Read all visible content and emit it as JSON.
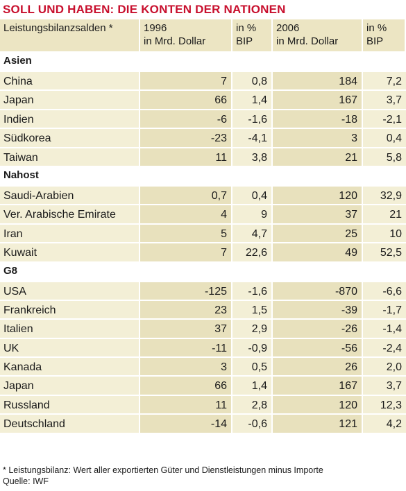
{
  "title": "SOLL UND HABEN: DIE KONTEN DER NATIONEN",
  "columns": [
    {
      "line1": "Leistungsbilanzsalden *",
      "line2": ""
    },
    {
      "line1": "1996",
      "line2": "in Mrd. Dollar"
    },
    {
      "line1": "in %",
      "line2": "BIP"
    },
    {
      "line1": "2006",
      "line2": "in Mrd. Dollar"
    },
    {
      "line1": "in %",
      "line2": "BIP"
    }
  ],
  "groups": [
    {
      "name": "Asien",
      "rows": [
        [
          "China",
          "7",
          "0,8",
          "184",
          "7,2"
        ],
        [
          "Japan",
          "66",
          "1,4",
          "167",
          "3,7"
        ],
        [
          "Indien",
          "-6",
          "-1,6",
          "-18",
          "-2,1"
        ],
        [
          "Südkorea",
          "-23",
          "-4,1",
          "3",
          "0,4"
        ],
        [
          "Taiwan",
          "11",
          "3,8",
          "21",
          "5,8"
        ]
      ]
    },
    {
      "name": "Nahost",
      "rows": [
        [
          "Saudi-Arabien",
          "0,7",
          "0,4",
          "120",
          "32,9"
        ],
        [
          "Ver. Arabische Emirate",
          "4",
          "9",
          "37",
          "21"
        ],
        [
          "Iran",
          "5",
          "4,7",
          "25",
          "10"
        ],
        [
          "Kuwait",
          "7",
          "22,6",
          "49",
          "52,5"
        ]
      ]
    },
    {
      "name": "G8",
      "rows": [
        [
          "USA",
          "-125",
          "-1,6",
          "-870",
          "-6,6"
        ],
        [
          "Frankreich",
          "23",
          "1,5",
          "-39",
          "-1,7"
        ],
        [
          "Italien",
          "37",
          "2,9",
          "-26",
          "-1,4"
        ],
        [
          "UK",
          "-11",
          "-0,9",
          "-56",
          "-2,4"
        ],
        [
          "Kanada",
          "3",
          "0,5",
          "26",
          "2,0"
        ],
        [
          "Japan",
          "66",
          "1,4",
          "167",
          "3,7"
        ],
        [
          "Russland",
          "11",
          "2,8",
          "120",
          "12,3"
        ],
        [
          "Deutschland",
          "-14",
          "-0,6",
          "121",
          "4,2"
        ]
      ]
    }
  ],
  "footnote": "* Leistungsbilanz: Wert aller exportierten Güter und Dienstleistungen minus Importe",
  "source": "Quelle: IWF",
  "colors": {
    "title": "#c8102e",
    "header": "#ece5c3",
    "light": "#f3efd6",
    "dark": "#e8e1bd"
  }
}
